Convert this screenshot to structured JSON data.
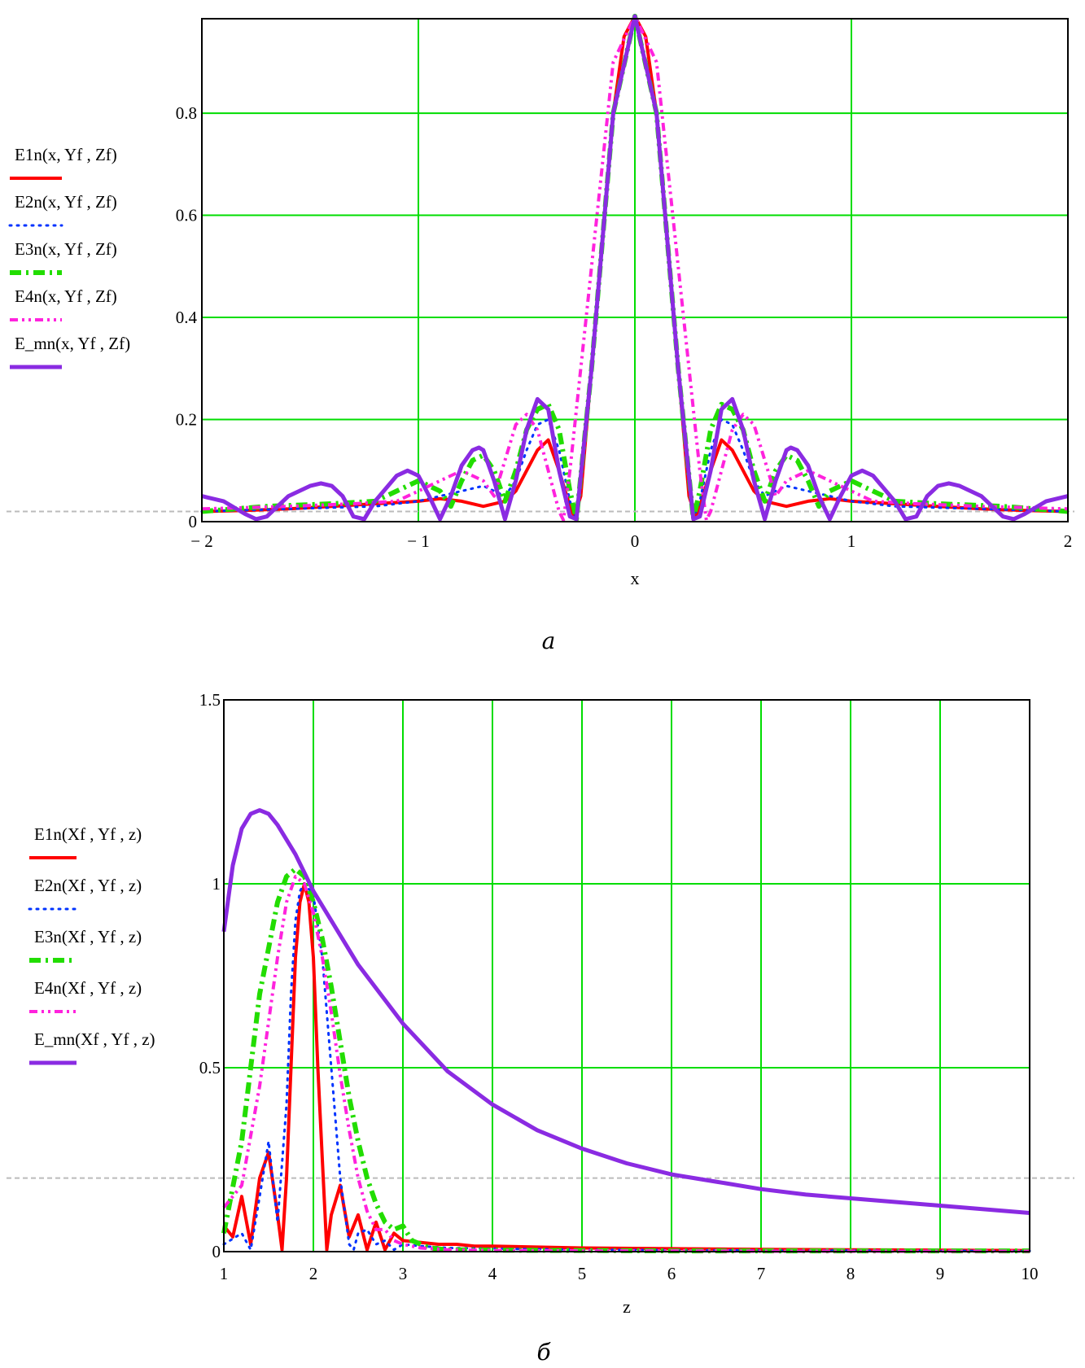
{
  "colors": {
    "E1n": "#ff0000",
    "E2n": "#0033ff",
    "E3n": "#22dd00",
    "E4n": "#ff22dd",
    "E_mn": "#8a2be2",
    "grid": "#00dd00",
    "marker": "#bbbbbb"
  },
  "chart_data": [
    {
      "type": "line",
      "caption": "а",
      "xlabel": "x",
      "ylabel": "",
      "xlim": [
        -2,
        2
      ],
      "ylim": [
        0,
        0.985
      ],
      "xticks": [
        -2,
        -1,
        0,
        1,
        2
      ],
      "xtick_labels": [
        "− 2",
        "− 1",
        "0",
        "1",
        "2"
      ],
      "yticks": [
        0,
        0.2,
        0.4,
        0.6,
        0.8
      ],
      "ytick_labels": [
        "0",
        "0.2",
        "0.4",
        "0.6",
        "0.8"
      ],
      "grid": true,
      "legend_position": "left",
      "marker_line_y": 0.02,
      "series": [
        {
          "name": "E1n(x, Yf , Zf)",
          "style": "solid",
          "x": [
            -2,
            -1.8,
            -1.6,
            -1.4,
            -1.2,
            -1.0,
            -0.9,
            -0.8,
            -0.7,
            -0.6,
            -0.55,
            -0.5,
            -0.45,
            -0.4,
            -0.35,
            -0.3,
            -0.28,
            -0.25,
            -0.2,
            -0.1,
            -0.05,
            0,
            0.05,
            0.1,
            0.2,
            0.25,
            0.28,
            0.3,
            0.35,
            0.4,
            0.45,
            0.5,
            0.55,
            0.6,
            0.7,
            0.8,
            0.9,
            1.0,
            1.2,
            1.4,
            1.6,
            1.8,
            2
          ],
          "y": [
            0.02,
            0.022,
            0.025,
            0.03,
            0.035,
            0.04,
            0.045,
            0.04,
            0.03,
            0.04,
            0.06,
            0.1,
            0.14,
            0.16,
            0.1,
            0.03,
            0.01,
            0.05,
            0.3,
            0.8,
            0.95,
            0.99,
            0.95,
            0.8,
            0.3,
            0.05,
            0.01,
            0.03,
            0.1,
            0.16,
            0.14,
            0.1,
            0.06,
            0.04,
            0.03,
            0.04,
            0.045,
            0.04,
            0.035,
            0.03,
            0.025,
            0.022,
            0.02
          ]
        },
        {
          "name": "E2n(x, Yf , Zf)",
          "style": "dotted",
          "x": [
            -2,
            -1.6,
            -1.2,
            -1.0,
            -0.9,
            -0.8,
            -0.7,
            -0.6,
            -0.55,
            -0.5,
            -0.45,
            -0.4,
            -0.35,
            -0.3,
            -0.27,
            -0.2,
            -0.1,
            0,
            0.1,
            0.2,
            0.27,
            0.3,
            0.35,
            0.4,
            0.45,
            0.5,
            0.55,
            0.6,
            0.7,
            0.8,
            0.9,
            1.0,
            1.2,
            1.6,
            2
          ],
          "y": [
            0.02,
            0.025,
            0.03,
            0.04,
            0.05,
            0.06,
            0.07,
            0.05,
            0.08,
            0.14,
            0.19,
            0.2,
            0.14,
            0.04,
            0.005,
            0.3,
            0.8,
            0.99,
            0.8,
            0.3,
            0.005,
            0.04,
            0.14,
            0.2,
            0.19,
            0.14,
            0.08,
            0.05,
            0.07,
            0.06,
            0.05,
            0.04,
            0.03,
            0.025,
            0.02
          ]
        },
        {
          "name": "E3n(x, Yf , Zf)",
          "style": "dash-dot",
          "x": [
            -2,
            -1.7,
            -1.4,
            -1.2,
            -1.1,
            -1.0,
            -0.9,
            -0.85,
            -0.8,
            -0.75,
            -0.7,
            -0.65,
            -0.6,
            -0.55,
            -0.5,
            -0.45,
            -0.4,
            -0.35,
            -0.3,
            -0.27,
            -0.2,
            -0.1,
            0,
            0.1,
            0.2,
            0.27,
            0.3,
            0.35,
            0.4,
            0.45,
            0.5,
            0.55,
            0.6,
            0.65,
            0.7,
            0.75,
            0.8,
            0.85,
            0.9,
            1.0,
            1.1,
            1.2,
            1.4,
            1.7,
            2
          ],
          "y": [
            0.02,
            0.03,
            0.035,
            0.04,
            0.06,
            0.08,
            0.06,
            0.03,
            0.08,
            0.12,
            0.13,
            0.1,
            0.04,
            0.1,
            0.18,
            0.22,
            0.23,
            0.18,
            0.06,
            0.005,
            0.3,
            0.8,
            0.99,
            0.8,
            0.3,
            0.005,
            0.06,
            0.18,
            0.23,
            0.22,
            0.18,
            0.1,
            0.04,
            0.1,
            0.13,
            0.12,
            0.08,
            0.03,
            0.06,
            0.08,
            0.06,
            0.04,
            0.035,
            0.03,
            0.02
          ]
        },
        {
          "name": "E4n(x, Yf , Zf)",
          "style": "dash-dot-dot",
          "x": [
            -2,
            -1.6,
            -1.3,
            -1.1,
            -1.0,
            -0.9,
            -0.8,
            -0.7,
            -0.65,
            -0.6,
            -0.55,
            -0.5,
            -0.45,
            -0.4,
            -0.35,
            -0.33,
            -0.3,
            -0.2,
            -0.1,
            0,
            0.1,
            0.2,
            0.3,
            0.33,
            0.35,
            0.4,
            0.45,
            0.5,
            0.55,
            0.6,
            0.65,
            0.7,
            0.8,
            0.9,
            1.0,
            1.1,
            1.3,
            1.6,
            2
          ],
          "y": [
            0.025,
            0.03,
            0.035,
            0.04,
            0.06,
            0.08,
            0.1,
            0.08,
            0.05,
            0.12,
            0.19,
            0.21,
            0.18,
            0.1,
            0.02,
            0.003,
            0.1,
            0.5,
            0.9,
            0.99,
            0.9,
            0.5,
            0.1,
            0.003,
            0.02,
            0.1,
            0.18,
            0.21,
            0.19,
            0.12,
            0.05,
            0.08,
            0.1,
            0.08,
            0.06,
            0.04,
            0.035,
            0.03,
            0.025
          ]
        },
        {
          "name": "E_mn(x, Yf , Zf)",
          "style": "solid-thick",
          "x": [
            -2,
            -1.9,
            -1.8,
            -1.75,
            -1.7,
            -1.6,
            -1.5,
            -1.45,
            -1.4,
            -1.35,
            -1.3,
            -1.25,
            -1.2,
            -1.1,
            -1.05,
            -1.0,
            -0.95,
            -0.9,
            -0.85,
            -0.8,
            -0.75,
            -0.72,
            -0.7,
            -0.65,
            -0.6,
            -0.55,
            -0.5,
            -0.45,
            -0.4,
            -0.35,
            -0.3,
            -0.27,
            -0.2,
            -0.1,
            0,
            0.1,
            0.2,
            0.27,
            0.3,
            0.35,
            0.4,
            0.45,
            0.5,
            0.55,
            0.6,
            0.65,
            0.7,
            0.72,
            0.75,
            0.8,
            0.85,
            0.9,
            0.95,
            1.0,
            1.05,
            1.1,
            1.2,
            1.25,
            1.3,
            1.35,
            1.4,
            1.45,
            1.5,
            1.6,
            1.7,
            1.75,
            1.8,
            1.9,
            2
          ],
          "y": [
            0.05,
            0.04,
            0.015,
            0.005,
            0.01,
            0.05,
            0.07,
            0.075,
            0.07,
            0.05,
            0.01,
            0.005,
            0.04,
            0.09,
            0.1,
            0.09,
            0.05,
            0.005,
            0.05,
            0.11,
            0.14,
            0.145,
            0.14,
            0.08,
            0.005,
            0.08,
            0.18,
            0.24,
            0.22,
            0.1,
            0.01,
            0.005,
            0.3,
            0.8,
            0.99,
            0.8,
            0.3,
            0.005,
            0.01,
            0.1,
            0.22,
            0.24,
            0.18,
            0.08,
            0.005,
            0.08,
            0.14,
            0.145,
            0.14,
            0.11,
            0.05,
            0.005,
            0.05,
            0.09,
            0.1,
            0.09,
            0.04,
            0.005,
            0.01,
            0.05,
            0.07,
            0.075,
            0.07,
            0.05,
            0.01,
            0.005,
            0.015,
            0.04,
            0.05
          ]
        }
      ]
    },
    {
      "type": "line",
      "caption": "б",
      "xlabel": "z",
      "ylabel": "",
      "xlim": [
        1,
        10
      ],
      "ylim": [
        0,
        1.5
      ],
      "xticks": [
        1,
        2,
        3,
        4,
        5,
        6,
        7,
        8,
        9,
        10
      ],
      "xtick_labels": [
        "1",
        "2",
        "3",
        "4",
        "5",
        "6",
        "7",
        "8",
        "9",
        "10"
      ],
      "yticks": [
        0,
        0.5,
        1,
        1.5
      ],
      "ytick_labels": [
        "0",
        "0.5",
        "1",
        "1.5"
      ],
      "grid": true,
      "legend_position": "left",
      "marker_line_y": 0.2,
      "series": [
        {
          "name": "E1n(Xf , Yf , z)",
          "style": "solid",
          "x": [
            1,
            1.1,
            1.2,
            1.3,
            1.4,
            1.5,
            1.6,
            1.65,
            1.7,
            1.75,
            1.8,
            1.85,
            1.9,
            1.95,
            2.0,
            2.05,
            2.1,
            2.15,
            2.2,
            2.3,
            2.4,
            2.5,
            2.6,
            2.7,
            2.8,
            2.9,
            3.0,
            3.2,
            3.4,
            3.6,
            3.8,
            4,
            5,
            6,
            7,
            8,
            9,
            10
          ],
          "y": [
            0.07,
            0.04,
            0.15,
            0.02,
            0.2,
            0.27,
            0.1,
            0.005,
            0.2,
            0.5,
            0.8,
            0.95,
            1.0,
            0.95,
            0.8,
            0.5,
            0.25,
            0.005,
            0.1,
            0.18,
            0.04,
            0.1,
            0.005,
            0.08,
            0.005,
            0.05,
            0.03,
            0.025,
            0.02,
            0.02,
            0.015,
            0.015,
            0.01,
            0.008,
            0.006,
            0.005,
            0.004,
            0.003
          ]
        },
        {
          "name": "E2n(Xf , Yf , z)",
          "style": "dotted",
          "x": [
            1,
            1.2,
            1.3,
            1.4,
            1.5,
            1.6,
            1.7,
            1.75,
            1.8,
            1.85,
            1.9,
            2.0,
            2.1,
            2.2,
            2.3,
            2.4,
            2.45,
            2.5,
            2.6,
            2.7,
            2.8,
            2.9,
            3.0,
            3.2,
            3.5,
            4,
            5,
            6,
            7,
            8,
            9,
            10
          ],
          "y": [
            0.02,
            0.05,
            0.005,
            0.15,
            0.3,
            0.08,
            0.4,
            0.7,
            0.9,
            0.98,
            1.0,
            0.97,
            0.8,
            0.5,
            0.2,
            0.02,
            0.005,
            0.05,
            0.06,
            0.02,
            0.03,
            0.005,
            0.02,
            0.015,
            0.01,
            0.008,
            0.005,
            0.004,
            0.003,
            0.003,
            0.002,
            0.002
          ]
        },
        {
          "name": "E3n(Xf , Yf , z)",
          "style": "dash-dot",
          "x": [
            1,
            1.2,
            1.4,
            1.6,
            1.7,
            1.8,
            1.9,
            2.0,
            2.1,
            2.2,
            2.3,
            2.4,
            2.5,
            2.6,
            2.7,
            2.8,
            2.9,
            3.0,
            3.1,
            3.2,
            3.3,
            3.5,
            4,
            5,
            6,
            7,
            8,
            9,
            10
          ],
          "y": [
            0.05,
            0.3,
            0.7,
            0.95,
            1.02,
            1.04,
            1.02,
            0.95,
            0.85,
            0.72,
            0.57,
            0.42,
            0.3,
            0.2,
            0.13,
            0.08,
            0.06,
            0.07,
            0.03,
            0.02,
            0.01,
            0.005,
            0.004,
            0.003,
            0.002,
            0.002,
            0.002,
            0.002,
            0.002
          ]
        },
        {
          "name": "E4n(Xf , Yf , z)",
          "style": "dash-dot-dot",
          "x": [
            1,
            1.2,
            1.4,
            1.6,
            1.7,
            1.8,
            1.9,
            2.0,
            2.1,
            2.2,
            2.3,
            2.4,
            2.5,
            2.6,
            2.7,
            2.8,
            2.9,
            3.0,
            3.2,
            3.5,
            4,
            5,
            6,
            7,
            8,
            9,
            10
          ],
          "y": [
            0.12,
            0.18,
            0.45,
            0.8,
            0.95,
            1.02,
            1.0,
            0.92,
            0.8,
            0.65,
            0.48,
            0.33,
            0.2,
            0.11,
            0.06,
            0.06,
            0.03,
            0.02,
            0.01,
            0.005,
            0.003,
            0.002,
            0.002,
            0.001,
            0.001,
            0.001,
            0.001
          ]
        },
        {
          "name": "E_mn(Xf , Yf , z)",
          "style": "solid-thick",
          "x": [
            1,
            1.1,
            1.2,
            1.3,
            1.4,
            1.5,
            1.6,
            1.8,
            2.0,
            2.2,
            2.5,
            3.0,
            3.5,
            4.0,
            4.5,
            5.0,
            5.5,
            6.0,
            6.5,
            7.0,
            7.5,
            8.0,
            8.5,
            9.0,
            9.5,
            10
          ],
          "y": [
            0.87,
            1.05,
            1.15,
            1.19,
            1.2,
            1.19,
            1.16,
            1.08,
            0.98,
            0.9,
            0.78,
            0.62,
            0.49,
            0.4,
            0.33,
            0.28,
            0.24,
            0.21,
            0.19,
            0.17,
            0.155,
            0.145,
            0.135,
            0.125,
            0.115,
            0.105
          ]
        }
      ]
    }
  ]
}
